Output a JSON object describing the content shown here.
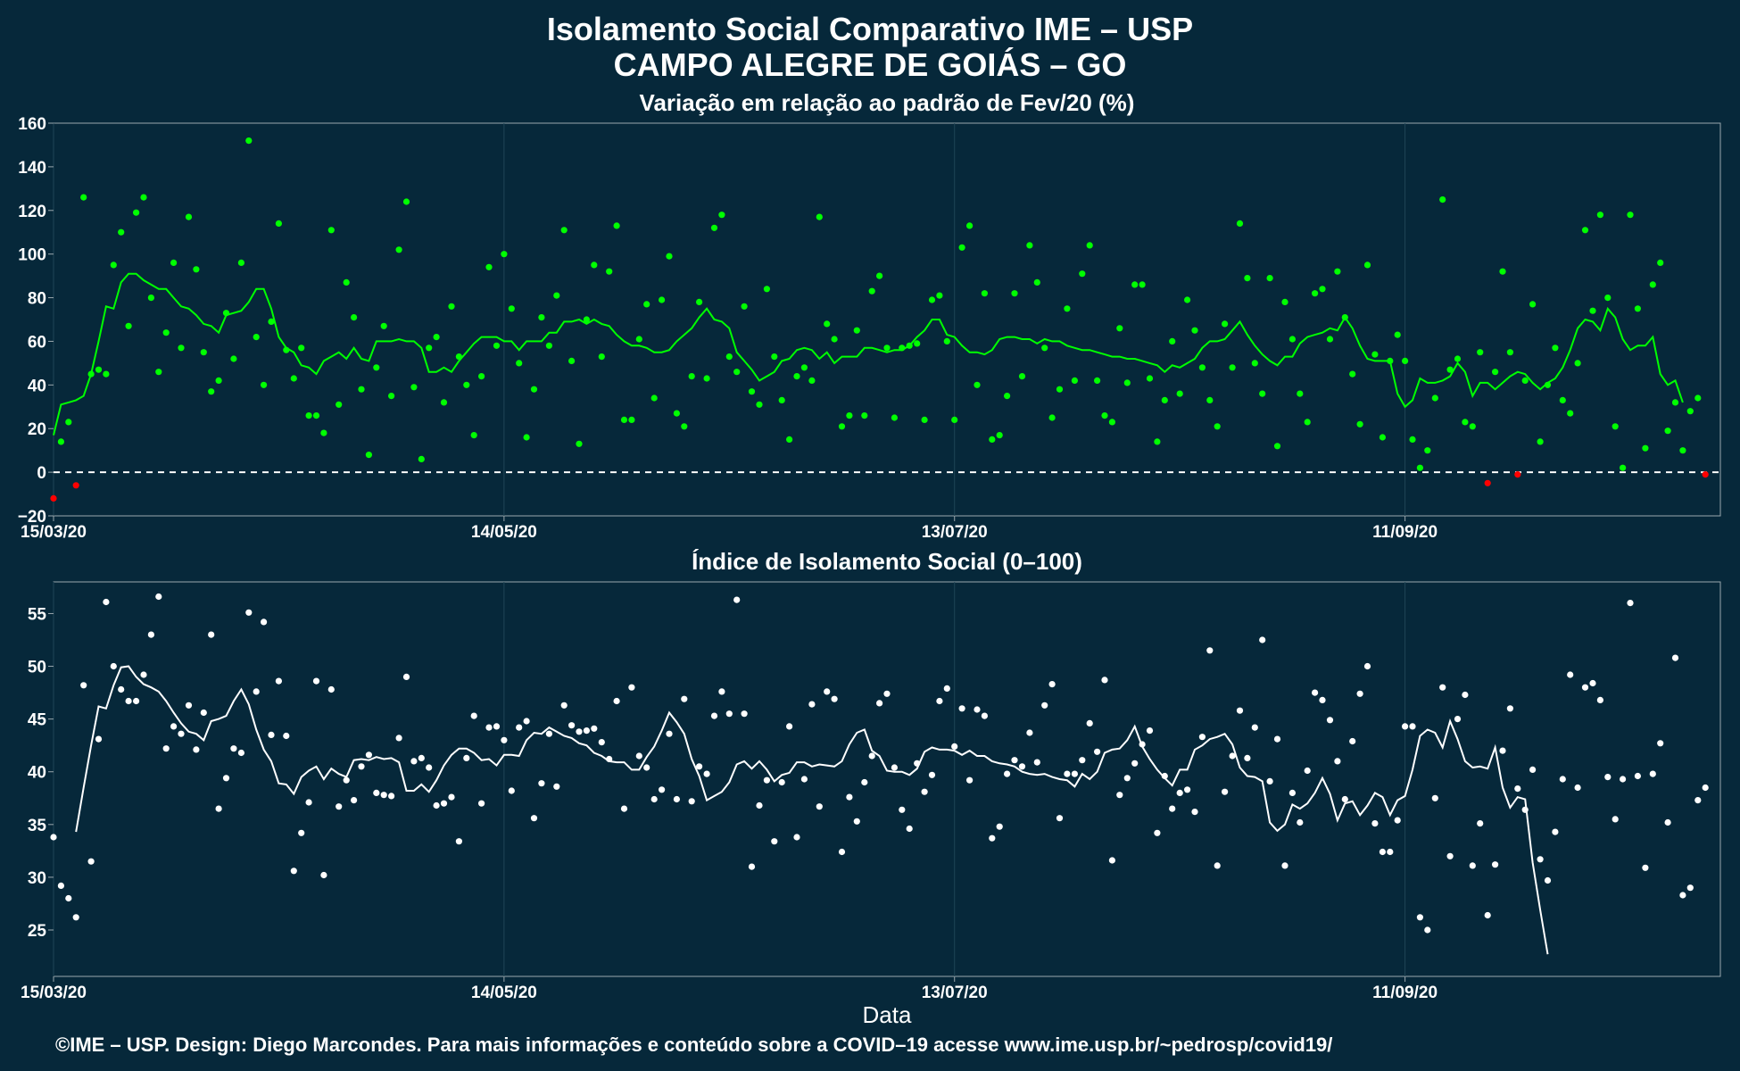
{
  "figure": {
    "title": "Isolamento Social Comparativo IME – USP",
    "subtitle": "CAMPO ALEGRE DE GOIÁS – GO",
    "footer": "©IME – USP. Design: Diego Marcondes. Para mais informações e conteúdo sobre a COVID–19 acesse www.ime.usp.br/~pedrosp/covid19/",
    "colors": {
      "background": "#06283a",
      "variation_points": "#00ff00",
      "variation_negative": "#ff0000",
      "index_points": "#ffffff"
    }
  },
  "chart_data": [
    {
      "type": "scatter",
      "title": "Variação em relação ao padrão de Fev/20 (%)",
      "xlabel": "",
      "ylabel": "",
      "ylim": [
        -20,
        160
      ],
      "yticks": [
        -20,
        0,
        20,
        40,
        60,
        80,
        100,
        120,
        140,
        160
      ],
      "xlim_days": [
        0,
        222
      ],
      "xticks": [
        {
          "day": 0,
          "label": "15/03/20"
        },
        {
          "day": 60,
          "label": "14/05/20"
        },
        {
          "day": 120,
          "label": "13/07/20"
        },
        {
          "day": 180,
          "label": "11/09/20"
        }
      ],
      "reference_line": 0,
      "grid": true,
      "series": [
        {
          "kind": "points",
          "x_start_day": 0,
          "values": [
            -12,
            14,
            23,
            -6,
            126,
            45,
            47,
            45,
            95,
            110,
            67,
            119,
            126,
            80,
            46,
            64,
            96,
            57,
            117,
            93,
            55,
            37,
            42,
            73,
            52,
            96,
            152,
            62,
            40,
            69,
            114,
            56,
            43,
            57,
            26,
            26,
            18,
            111,
            31,
            87,
            71,
            38,
            8,
            48,
            67,
            35,
            102,
            124,
            39,
            6,
            57,
            62,
            32,
            76,
            53,
            40,
            17,
            44,
            94,
            58,
            100,
            75,
            50,
            16,
            38,
            71,
            58,
            81,
            111,
            51,
            13,
            70,
            95,
            53,
            92,
            113,
            24,
            24,
            61,
            77,
            34,
            79,
            99,
            27,
            21,
            44,
            78,
            43,
            112,
            118,
            53,
            46,
            76,
            37,
            31,
            84,
            53,
            33,
            15,
            44,
            48,
            42,
            117,
            68,
            61,
            21,
            26,
            65,
            26,
            83,
            90,
            57,
            25,
            57,
            58,
            59,
            24,
            79,
            81,
            60,
            24,
            103,
            113,
            40,
            82,
            15,
            17,
            35,
            82,
            44,
            104,
            87,
            57,
            25,
            38,
            75,
            42,
            91,
            104,
            42,
            26,
            23,
            66,
            41,
            86,
            86,
            43,
            14,
            33,
            60,
            36,
            79,
            65,
            48,
            33,
            21,
            68,
            48,
            114,
            89,
            50,
            36,
            89,
            12,
            78,
            61,
            36,
            23,
            82,
            84,
            61,
            92,
            71,
            45,
            22,
            95,
            54,
            16,
            51,
            63,
            51,
            15,
            2,
            10,
            34,
            125,
            47,
            52,
            23,
            21,
            55,
            -5,
            46,
            92,
            55,
            -1,
            42,
            77,
            14,
            40,
            57,
            33,
            27,
            50,
            111,
            74,
            118,
            80,
            21,
            2,
            118,
            75,
            11,
            86,
            96,
            19,
            32,
            10,
            28,
            34,
            -1
          ]
        },
        {
          "kind": "moving_average",
          "x_start_day": 0,
          "values": [
            17,
            31,
            32,
            33,
            35,
            45,
            60,
            76,
            75,
            87,
            91,
            91,
            88,
            86,
            84,
            84,
            80,
            76,
            75,
            72,
            68,
            67,
            64,
            72,
            73,
            74,
            78,
            84,
            84,
            75,
            62,
            57,
            55,
            49,
            48,
            45,
            51,
            53,
            55,
            52,
            57,
            52,
            51,
            60,
            60,
            60,
            61,
            60,
            60,
            57,
            46,
            46,
            48,
            46,
            51,
            55,
            59,
            62,
            62,
            62,
            60,
            60,
            56,
            60,
            60,
            60,
            64,
            64,
            69,
            69,
            70,
            68,
            70,
            68,
            67,
            63,
            60,
            58,
            58,
            57,
            55,
            55,
            56,
            60,
            63,
            66,
            71,
            75,
            70,
            69,
            66,
            55,
            51,
            47,
            42,
            44,
            46,
            51,
            52,
            56,
            57,
            56,
            52,
            55,
            50,
            53,
            53,
            53,
            57,
            57,
            56,
            55,
            56,
            56,
            58,
            62,
            65,
            70,
            70,
            63,
            62,
            58,
            55,
            55,
            54,
            56,
            61,
            62,
            62,
            61,
            61,
            59,
            61,
            60,
            60,
            58,
            57,
            56,
            56,
            55,
            54,
            53,
            53,
            52,
            52,
            51,
            50,
            49,
            46,
            49,
            48,
            50,
            52,
            57,
            60,
            60,
            61,
            65,
            69,
            63,
            58,
            54,
            51,
            49,
            53,
            53,
            59,
            62,
            63,
            64,
            66,
            65,
            71,
            66,
            58,
            52,
            51,
            51,
            51,
            36,
            30,
            33,
            43,
            41,
            41,
            42,
            44,
            50,
            46,
            35,
            41,
            41,
            38,
            41,
            44,
            46,
            45,
            41,
            38,
            41,
            43,
            48,
            56,
            66,
            70,
            69,
            65,
            75,
            71,
            61,
            56,
            58,
            58,
            62,
            45,
            40,
            42,
            32
          ],
          "negative_days": [
            0,
            3,
            191,
            195,
            222
          ]
        }
      ]
    },
    {
      "type": "scatter",
      "title": "Índice de Isolamento Social (0–100)",
      "xlabel": "Data",
      "ylabel": "",
      "ylim": [
        20.6,
        58
      ],
      "yticks": [
        25,
        30,
        35,
        40,
        45,
        50,
        55
      ],
      "xlim_days": [
        0,
        222
      ],
      "xticks": [
        {
          "day": 0,
          "label": "15/03/20"
        },
        {
          "day": 60,
          "label": "14/05/20"
        },
        {
          "day": 120,
          "label": "13/07/20"
        },
        {
          "day": 180,
          "label": "11/09/20"
        }
      ],
      "grid": true,
      "series": [
        {
          "kind": "points",
          "x_start_day": 0,
          "values": [
            33.8,
            29.2,
            28,
            26.2,
            48.2,
            31.5,
            43.1,
            56.1,
            50,
            47.8,
            46.7,
            46.7,
            49.2,
            53,
            56.6,
            42.2,
            44.3,
            43.6,
            46.3,
            42.1,
            45.6,
            53,
            36.5,
            39.4,
            42.2,
            41.8,
            55.1,
            47.6,
            54.2,
            43.5,
            48.6,
            43.4,
            30.6,
            34.2,
            37.1,
            48.6,
            30.2,
            47.8,
            36.7,
            39.2,
            37.3,
            40.5,
            41.6,
            38,
            37.8,
            37.7,
            43.2,
            49,
            41,
            41.3,
            40.4,
            36.8,
            37,
            37.6,
            33.4,
            41.3,
            45.3,
            37,
            44.2,
            44.3,
            43,
            38.2,
            44.2,
            44.8,
            35.6,
            38.9,
            43.6,
            38.6,
            46.3,
            44.4,
            43.8,
            43.9,
            44.1,
            42.8,
            41.2,
            46.7,
            36.5,
            48,
            41.5,
            40.4,
            37.4,
            38.3,
            43.6,
            37.4,
            46.9,
            37.2,
            40.5,
            39.8,
            45.3,
            47.6,
            45.5,
            56.3,
            45.5,
            31,
            36.8,
            39.2,
            33.4,
            39,
            44.3,
            33.8,
            39.3,
            46.4,
            36.7,
            47.6,
            46.9,
            32.4,
            37.6,
            35.3,
            39,
            41.5,
            46.5,
            47.4,
            40.4,
            36.4,
            34.6,
            40.8,
            38.1,
            39.7,
            46.7,
            47.9,
            42.4,
            46,
            39.2,
            45.9,
            45.3,
            33.7,
            34.8,
            39.8,
            41.1,
            40.5,
            43.7,
            40.9,
            46.3,
            48.3,
            35.6,
            39.8,
            39.8,
            41.1,
            44.6,
            41.9,
            48.7,
            31.6,
            37.8,
            39.4,
            40.8,
            42.6,
            43.9,
            34.2,
            39.6,
            36.5,
            38,
            38.3,
            36.2,
            43.3,
            51.5,
            31.1,
            38.1,
            41.5,
            45.8,
            41.3,
            44.2,
            52.5,
            39.1,
            43.1,
            31.1,
            38,
            35.2,
            40.1,
            47.5,
            46.8,
            44.9,
            41,
            37.4,
            42.9,
            47.4,
            50,
            35.1,
            32.4,
            32.4,
            35.4,
            44.3,
            44.3,
            26.2,
            25,
            37.5,
            48,
            32,
            45,
            47.3,
            31.1,
            35.1,
            26.4,
            31.2,
            42,
            46,
            38.4,
            36.4,
            40.2,
            31.7,
            29.7,
            34.3,
            39.3,
            49.2,
            38.5,
            48,
            48.4,
            46.8,
            39.5,
            35.5,
            39.3,
            56,
            39.6,
            30.9,
            39.8,
            42.7,
            35.2,
            50.8,
            28.3,
            29,
            37.3,
            38.5
          ]
        },
        {
          "kind": "moving_average",
          "x_start_day": 3,
          "values": [
            34.3,
            38.5,
            42.5,
            46.2,
            46,
            48.2,
            49.9,
            50,
            49,
            48.3,
            48,
            47.6,
            46.7,
            45.6,
            44.6,
            43.8,
            43.6,
            43,
            44.8,
            45,
            45.3,
            46.7,
            47.8,
            46.4,
            44,
            42.1,
            41,
            38.9,
            38.8,
            37.9,
            39.5,
            40.1,
            40.5,
            39.3,
            40.3,
            39.8,
            39.5,
            41.1,
            41.2,
            41.1,
            41.4,
            41.2,
            41.3,
            40.9,
            38.2,
            38.2,
            38.8,
            38.1,
            39.2,
            40.6,
            41.6,
            42.2,
            42.2,
            41.8,
            41.1,
            41.2,
            40.6,
            41.6,
            41.6,
            41.5,
            43,
            43.7,
            43.6,
            44.2,
            43.8,
            43.4,
            43.2,
            42.7,
            42.5,
            41.8,
            41.5,
            41,
            40.9,
            40.9,
            40.2,
            40.2,
            41.4,
            42.4,
            43.9,
            45.6,
            44.7,
            43.6,
            41.2,
            39.6,
            37.3,
            37.7,
            38.1,
            39,
            40.7,
            41,
            40.3,
            41,
            40.2,
            39.1,
            39.7,
            39.9,
            40.9,
            40.9,
            40.5,
            40.7,
            40.6,
            40.5,
            41,
            42.6,
            43.7,
            44,
            42,
            41.5,
            40.1,
            40,
            40,
            39.7,
            40.3,
            41.9,
            42.3,
            42.1,
            42.1,
            42,
            41.6,
            42,
            41.5,
            41.5,
            41,
            40.8,
            40.7,
            40.5,
            40,
            39.8,
            39.7,
            39.8,
            39.5,
            39.3,
            39.2,
            38.6,
            39.8,
            39.3,
            40,
            41.8,
            42.1,
            42.2,
            43,
            44.3,
            42.4,
            41.2,
            40.2,
            39.4,
            38.7,
            40.2,
            40.2,
            42.1,
            42.5,
            43.1,
            43.3,
            43.6,
            42.6,
            40.4,
            39.6,
            39.5,
            39.1,
            35.2,
            34.4,
            35,
            36.9,
            36.5,
            37,
            38,
            39.4,
            37.9,
            35.4,
            37,
            37.2,
            35.9,
            36.8,
            38,
            37.6,
            35.9,
            37.3,
            37.7,
            40.2,
            43.4,
            44,
            43.7,
            42.3,
            44.8,
            43.1,
            41,
            40.4,
            40.5,
            40.3,
            42.3,
            38.5,
            36.6,
            37.6,
            37.4,
            31.4,
            26.9,
            22.7
          ]
        }
      ]
    }
  ]
}
